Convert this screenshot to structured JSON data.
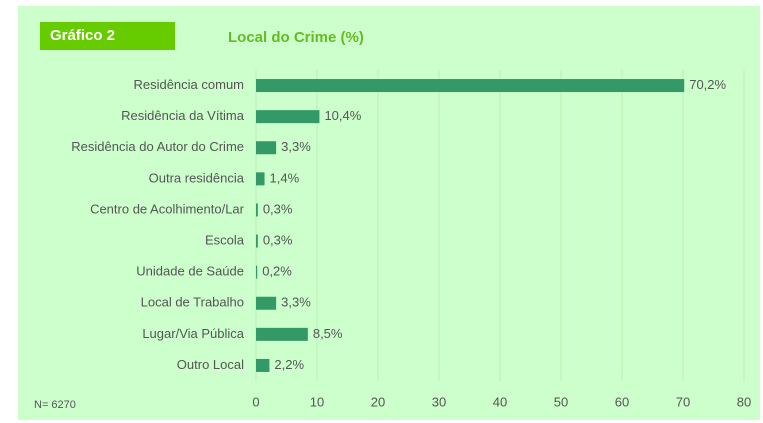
{
  "chart_data": {
    "type": "bar",
    "orientation": "horizontal",
    "figure_label": "Gráfico 2",
    "title": "Local do Crime (%)",
    "note": "N= 6270",
    "categories": [
      "Residência comum",
      "Residência da Vítima",
      "Residência do Autor do Crime",
      "Outra residência",
      "Centro de Acolhimento/Lar",
      "Escola",
      "Unidade de Saúde",
      "Local de Trabalho",
      "Lugar/Via Pública",
      "Outro Local"
    ],
    "values": [
      70.2,
      10.4,
      3.3,
      1.4,
      0.3,
      0.3,
      0.2,
      3.3,
      8.5,
      2.2
    ],
    "value_labels": [
      "70,2%",
      "10,4%",
      "3,3%",
      "1,4%",
      "0,3%",
      "0,3%",
      "0,2%",
      "3,3%",
      "8,5%",
      "2,2%"
    ],
    "color": "#339966",
    "xlim": [
      0,
      80
    ],
    "xticks": [
      0,
      10,
      20,
      30,
      40,
      50,
      60,
      70,
      80
    ],
    "grid": true
  }
}
